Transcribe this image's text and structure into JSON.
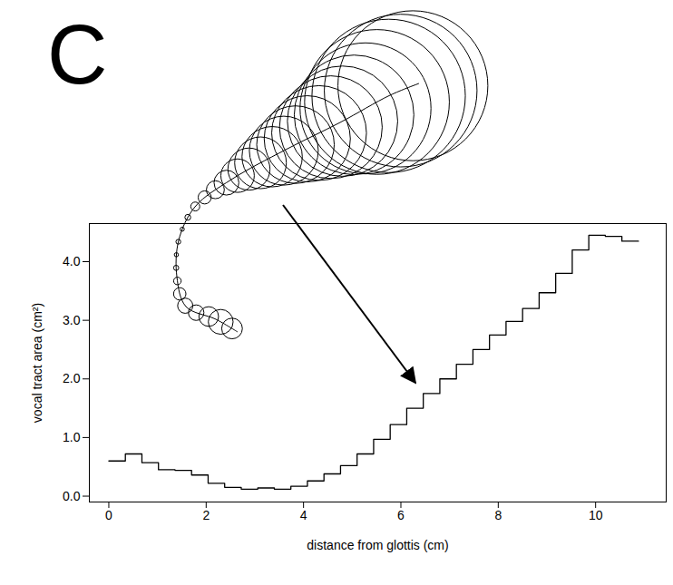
{
  "chart_data": {
    "type": "step",
    "panel": "C",
    "xlabel": "distance from glottis (cm)",
    "ylabel": "vocal tract area (cm²)",
    "bins": [
      0,
      0.34,
      0.68,
      1.02,
      1.36,
      1.7,
      2.04,
      2.38,
      2.72,
      3.06,
      3.4,
      3.74,
      4.08,
      4.42,
      4.76,
      5.1,
      5.44,
      5.78,
      6.12,
      6.46,
      6.8,
      7.14,
      7.48,
      7.82,
      8.16,
      8.5,
      8.84,
      9.18,
      9.52,
      9.86,
      10.2,
      10.54,
      10.88
    ],
    "values": [
      0.6,
      0.72,
      0.57,
      0.45,
      0.44,
      0.36,
      0.22,
      0.15,
      0.12,
      0.14,
      0.12,
      0.17,
      0.26,
      0.38,
      0.52,
      0.72,
      0.97,
      1.22,
      1.5,
      1.75,
      2.0,
      2.25,
      2.5,
      2.75,
      2.98,
      3.2,
      3.47,
      3.8,
      4.2,
      4.45,
      4.43,
      4.35
    ],
    "color": "#000000",
    "xlim": [
      -0.4,
      11.45
    ],
    "ylim": [
      -0.1,
      4.65
    ],
    "xticks": [
      0,
      2,
      4,
      6,
      8,
      10
    ],
    "yticks": [
      0,
      1,
      2,
      3,
      4
    ],
    "grid": false
  }
}
